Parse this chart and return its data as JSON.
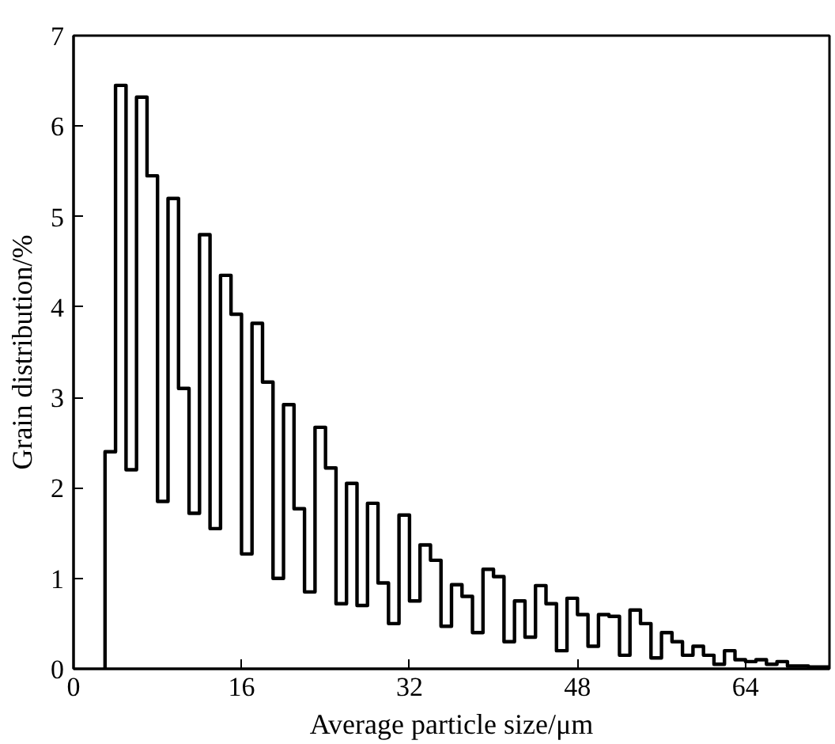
{
  "chart_data": {
    "type": "histogram",
    "xlabel": "Average particle size/μm",
    "ylabel": "Grain distribution/%",
    "bins": [
      3,
      4,
      5,
      6,
      7,
      8,
      9,
      10,
      11,
      12,
      13,
      14,
      15,
      16,
      17,
      18,
      19,
      20,
      21,
      22,
      23,
      24,
      25,
      26,
      27,
      28,
      29,
      30,
      31,
      32,
      33,
      34,
      35,
      36,
      37,
      38,
      39,
      40,
      41,
      42,
      43,
      44,
      45,
      46,
      47,
      48,
      49,
      50,
      51,
      52,
      53,
      54,
      55,
      56,
      57,
      58,
      59,
      60,
      61,
      62,
      63,
      64,
      65,
      66,
      67,
      68,
      69,
      70,
      71,
      72
    ],
    "values": [
      2.4,
      6.45,
      2.2,
      6.32,
      5.45,
      1.85,
      5.2,
      3.1,
      1.72,
      4.8,
      1.55,
      4.35,
      3.92,
      1.27,
      3.82,
      3.17,
      1.0,
      2.92,
      1.77,
      0.85,
      2.67,
      2.22,
      0.72,
      2.05,
      0.7,
      1.83,
      0.95,
      0.5,
      1.7,
      0.75,
      1.37,
      1.2,
      0.47,
      0.93,
      0.8,
      0.4,
      1.1,
      1.02,
      0.3,
      0.75,
      0.35,
      0.92,
      0.72,
      0.2,
      0.78,
      0.6,
      0.25,
      0.6,
      0.58,
      0.15,
      0.65,
      0.5,
      0.12,
      0.4,
      0.3,
      0.15,
      0.25,
      0.15,
      0.05,
      0.2,
      0.1,
      0.08,
      0.1,
      0.05,
      0.08,
      0.03,
      0.03,
      0.02,
      0.02
    ],
    "color": "#000000",
    "xlim": [
      0,
      72
    ],
    "ylim": [
      0,
      7
    ],
    "xticks": [
      0,
      16,
      32,
      48,
      64
    ],
    "yticks": [
      0,
      1,
      2,
      3,
      4,
      5,
      6,
      7
    ]
  }
}
